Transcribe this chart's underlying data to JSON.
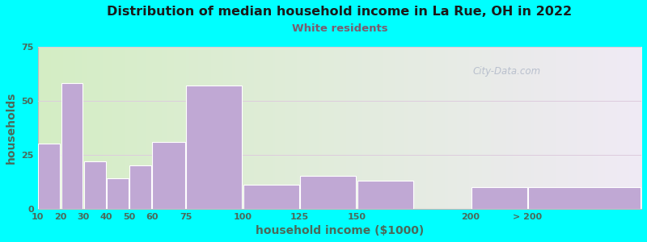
{
  "title": "Distribution of median household income in La Rue, OH in 2022",
  "subtitle": "White residents",
  "xlabel": "household income ($1000)",
  "ylabel": "households",
  "background_color": "#00FFFF",
  "plot_bg_left": "#d4eec4",
  "plot_bg_right": "#f0eaf5",
  "bar_color": "#c0a8d4",
  "bar_edge_color": "#ffffff",
  "title_color": "#1a1a1a",
  "subtitle_color": "#7a5c6e",
  "axis_label_color": "#4a6a5a",
  "tick_label_color": "#4a6a5a",
  "grid_color": "#ddccdd",
  "watermark_color": "#b0b8c8",
  "categories": [
    "10",
    "20",
    "30",
    "40",
    "50",
    "60",
    "75",
    "100",
    "125",
    "150",
    "200",
    "> 200"
  ],
  "values": [
    30,
    58,
    22,
    14,
    20,
    31,
    57,
    11,
    15,
    13,
    10,
    10
  ],
  "bar_lefts": [
    10,
    20,
    30,
    40,
    50,
    60,
    75,
    100,
    125,
    150,
    200,
    225
  ],
  "bar_widths": [
    10,
    10,
    10,
    10,
    10,
    15,
    25,
    25,
    25,
    25,
    25,
    50
  ],
  "xtick_positions": [
    10,
    20,
    30,
    40,
    50,
    60,
    75,
    100,
    125,
    150,
    200,
    225
  ],
  "xlim": [
    10,
    275
  ],
  "ylim": [
    0,
    75
  ],
  "yticks": [
    0,
    25,
    50,
    75
  ],
  "watermark": "City-Data.com"
}
